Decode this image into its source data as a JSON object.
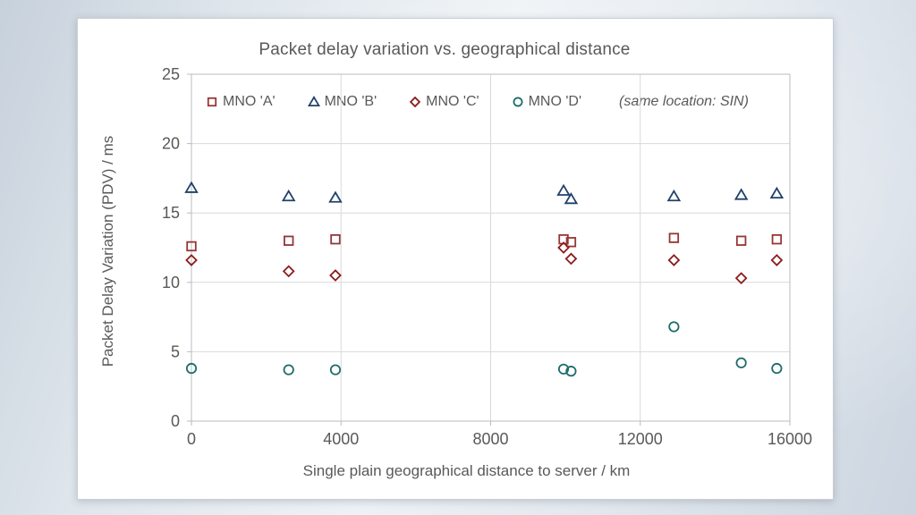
{
  "chart_data": {
    "type": "scatter",
    "title": "Packet delay variation vs. geographical distance",
    "xlabel": "Single plain geographical distance to server / km",
    "ylabel": "Packet Delay Variation (PDV) / ms",
    "legend_note": "(same location: SIN)",
    "legend_position": "top-inside",
    "grid": "both",
    "xlim": [
      0,
      16000
    ],
    "ylim": [
      0,
      25
    ],
    "x_ticks": [
      0,
      4000,
      8000,
      12000,
      16000
    ],
    "y_ticks": [
      0,
      5,
      10,
      15,
      20,
      25
    ],
    "series": [
      {
        "name": "MNO 'A'",
        "marker": "square",
        "color": "#953735",
        "points": [
          [
            0,
            12.6
          ],
          [
            2600,
            13.0
          ],
          [
            3850,
            13.1
          ],
          [
            9950,
            13.1
          ],
          [
            10150,
            12.9
          ],
          [
            12900,
            13.2
          ],
          [
            14700,
            13.0
          ],
          [
            15650,
            13.1
          ]
        ]
      },
      {
        "name": "MNO 'B'",
        "marker": "triangle",
        "color": "#20416b",
        "points": [
          [
            0,
            16.8
          ],
          [
            2600,
            16.2
          ],
          [
            3850,
            16.1
          ],
          [
            9950,
            16.6
          ],
          [
            10150,
            16.0
          ],
          [
            12900,
            16.2
          ],
          [
            14700,
            16.3
          ],
          [
            15650,
            16.4
          ]
        ]
      },
      {
        "name": "MNO 'C'",
        "marker": "diamond",
        "color": "#8b1c1c",
        "points": [
          [
            0,
            11.6
          ],
          [
            2600,
            10.8
          ],
          [
            3850,
            10.5
          ],
          [
            9950,
            12.5
          ],
          [
            10150,
            11.7
          ],
          [
            12900,
            11.6
          ],
          [
            14700,
            10.3
          ],
          [
            15650,
            11.6
          ]
        ]
      },
      {
        "name": "MNO 'D'",
        "marker": "circle",
        "color": "#1e6c6b",
        "points": [
          [
            0,
            3.8
          ],
          [
            2600,
            3.7
          ],
          [
            3850,
            3.7
          ],
          [
            9950,
            3.75
          ],
          [
            10150,
            3.6
          ],
          [
            12900,
            6.8
          ],
          [
            14700,
            4.2
          ],
          [
            15650,
            3.8
          ]
        ]
      }
    ],
    "colors": {
      "text": "#595959",
      "grid": "#d9d9d9",
      "axis": "#b7bcc1"
    }
  }
}
